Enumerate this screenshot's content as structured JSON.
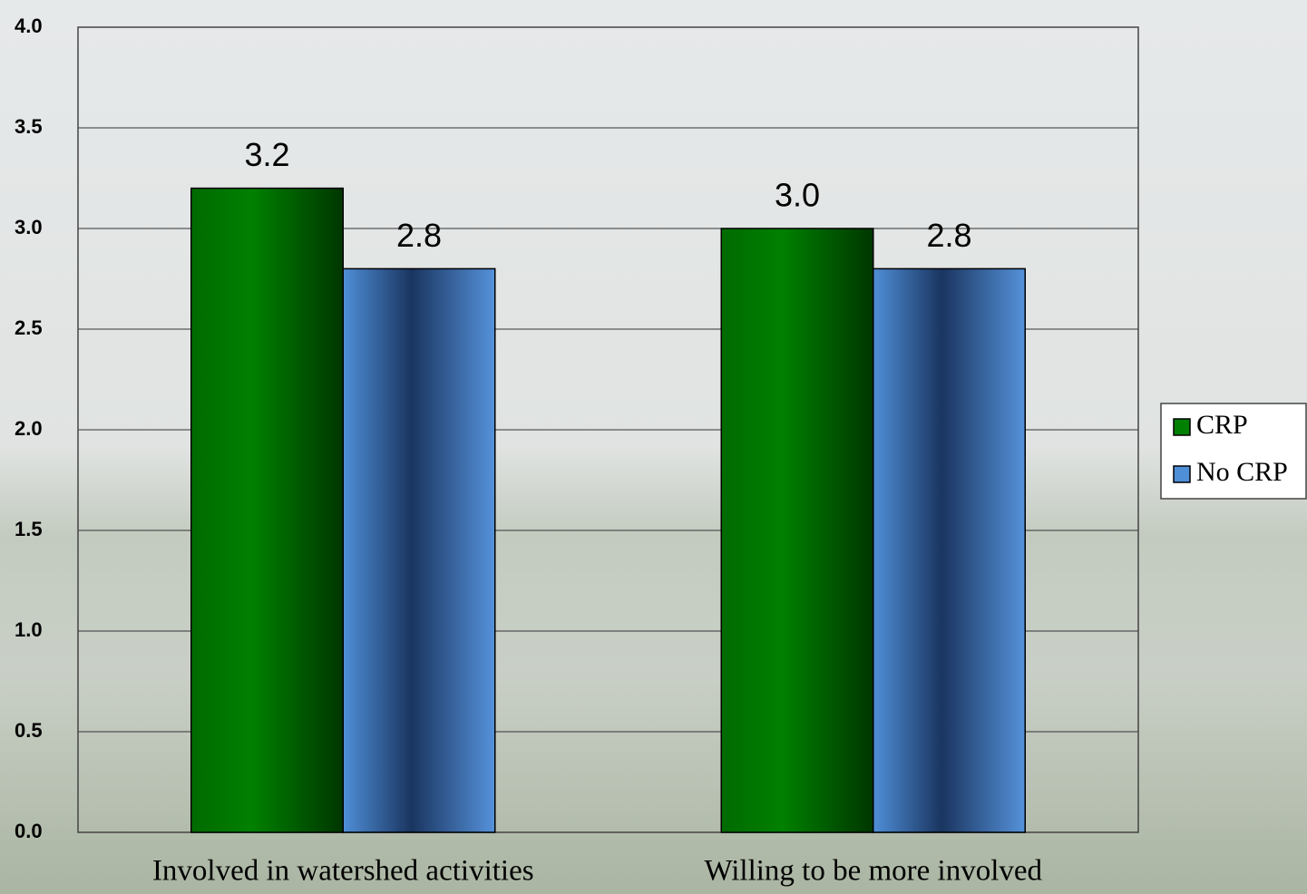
{
  "chart_data": {
    "type": "bar",
    "categories": [
      "Involved in watershed activities",
      "Willing to be more involved"
    ],
    "series": [
      {
        "name": "CRP",
        "color": "#008000",
        "values": [
          3.2,
          3.0
        ],
        "value_labels": [
          "3.2",
          "3.0"
        ]
      },
      {
        "name": "No CRP",
        "color": "#4f8fd8",
        "values": [
          2.8,
          2.8
        ],
        "value_labels": [
          "2.8",
          "2.8"
        ]
      }
    ],
    "ylim": [
      0,
      4
    ],
    "yticks": [
      {
        "value": 0,
        "label": "0.0"
      },
      0.5,
      {
        "value": 1,
        "label": "1.0"
      },
      1.5,
      {
        "value": 2,
        "label": "2.0"
      },
      2.5,
      {
        "value": 3,
        "label": "3.0"
      },
      3.5,
      {
        "value": 4,
        "label": "4.0"
      }
    ],
    "grid": true,
    "legend": "right"
  }
}
